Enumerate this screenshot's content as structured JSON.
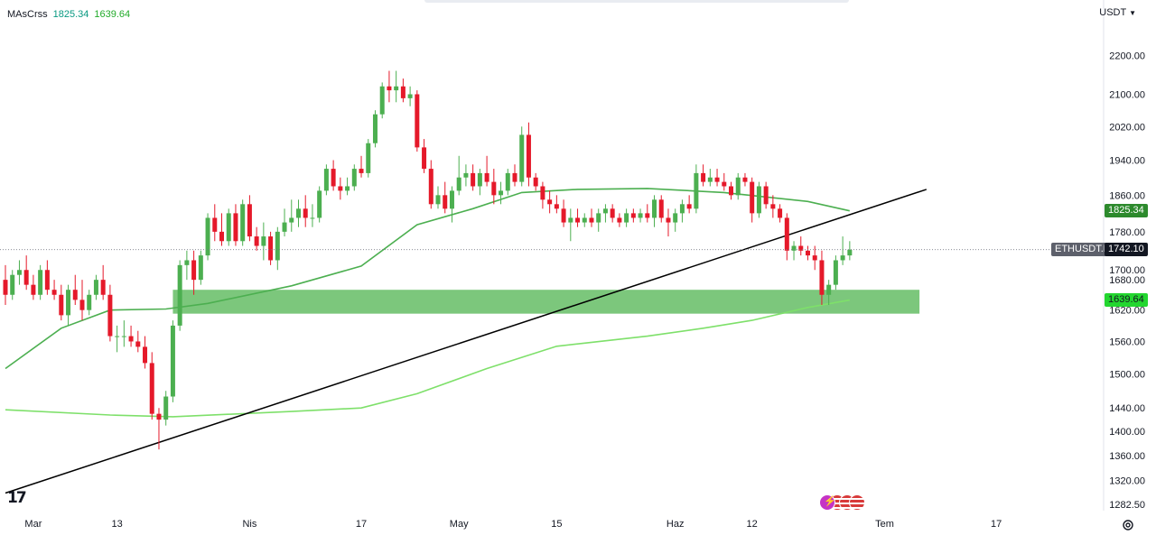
{
  "legend": {
    "name": "MAsCrss",
    "value1": "1825.34",
    "value2": "1639.64"
  },
  "currency": "USDT",
  "currency_icon": "chevron-down-icon",
  "symbol": "ETHUSDT.P",
  "last_price": "1742.10",
  "ma_fast_price": "1825.34",
  "ma_slow_price": "1639.64",
  "price_ticks": [
    "2200.00",
    "2100.00",
    "2020.00",
    "1940.00",
    "1860.00",
    "1780.00",
    "1700.00",
    "1680.00",
    "1620.00",
    "1560.00",
    "1500.00",
    "1440.00",
    "1400.00",
    "1360.00",
    "1320.00",
    "1282.50"
  ],
  "time_ticks": [
    "Mar",
    "13",
    "Nis",
    "17",
    "May",
    "15",
    "Haz",
    "12",
    "Tem",
    "17"
  ],
  "colors": {
    "up": "#4caf50",
    "down": "#e5192a",
    "ma_fast": "#4caf50",
    "ma_slow": "#7ee06a",
    "zone": "#7cc77c",
    "trend": "#000000",
    "tag_dark": "#2d8a2d",
    "tag_bright": "#23d62f",
    "tag_symbol": "#5d606b",
    "tag_last": "#131722"
  },
  "logo": "17",
  "chart_data": {
    "type": "candlestick",
    "symbol": "ETHUSDT.P",
    "y_scale": "log",
    "ylim": [
      1282.5,
      2240
    ],
    "x_range": [
      "2025-02-25",
      "2025-07-21"
    ],
    "candles": [
      [
        "2025-02-25",
        1680,
        1710,
        1630,
        1650
      ],
      [
        "2025-02-26",
        1650,
        1700,
        1640,
        1690
      ],
      [
        "2025-02-27",
        1690,
        1720,
        1670,
        1700
      ],
      [
        "2025-02-28",
        1700,
        1730,
        1660,
        1670
      ],
      [
        "2025-03-01",
        1670,
        1690,
        1640,
        1650
      ],
      [
        "2025-03-02",
        1650,
        1710,
        1640,
        1700
      ],
      [
        "2025-03-03",
        1700,
        1720,
        1650,
        1660
      ],
      [
        "2025-03-04",
        1660,
        1680,
        1640,
        1650
      ],
      [
        "2025-03-05",
        1650,
        1670,
        1600,
        1610
      ],
      [
        "2025-03-06",
        1610,
        1670,
        1590,
        1660
      ],
      [
        "2025-03-07",
        1660,
        1690,
        1630,
        1640
      ],
      [
        "2025-03-08",
        1640,
        1680,
        1600,
        1620
      ],
      [
        "2025-03-09",
        1620,
        1660,
        1610,
        1650
      ],
      [
        "2025-03-10",
        1650,
        1690,
        1640,
        1680
      ],
      [
        "2025-03-11",
        1680,
        1710,
        1640,
        1650
      ],
      [
        "2025-03-12",
        1650,
        1670,
        1560,
        1570
      ],
      [
        "2025-03-13",
        1570,
        1590,
        1540,
        1570
      ],
      [
        "2025-03-14",
        1570,
        1600,
        1550,
        1570
      ],
      [
        "2025-03-15",
        1570,
        1590,
        1550,
        1560
      ],
      [
        "2025-03-16",
        1560,
        1580,
        1540,
        1550
      ],
      [
        "2025-03-17",
        1550,
        1570,
        1510,
        1520
      ],
      [
        "2025-03-18",
        1520,
        1540,
        1420,
        1430
      ],
      [
        "2025-03-19",
        1430,
        1440,
        1370,
        1420
      ],
      [
        "2025-03-20",
        1420,
        1470,
        1410,
        1460
      ],
      [
        "2025-03-21",
        1460,
        1600,
        1450,
        1590
      ],
      [
        "2025-03-22",
        1590,
        1720,
        1580,
        1710
      ],
      [
        "2025-03-23",
        1710,
        1740,
        1680,
        1720
      ],
      [
        "2025-03-24",
        1720,
        1740,
        1650,
        1680
      ],
      [
        "2025-03-25",
        1680,
        1740,
        1670,
        1730
      ],
      [
        "2025-03-26",
        1730,
        1820,
        1720,
        1810
      ],
      [
        "2025-03-27",
        1810,
        1840,
        1760,
        1780
      ],
      [
        "2025-03-28",
        1780,
        1820,
        1750,
        1760
      ],
      [
        "2025-03-29",
        1760,
        1830,
        1750,
        1820
      ],
      [
        "2025-03-30",
        1820,
        1840,
        1750,
        1760
      ],
      [
        "2025-03-31",
        1760,
        1850,
        1750,
        1840
      ],
      [
        "2025-04-01",
        1840,
        1860,
        1760,
        1770
      ],
      [
        "2025-04-02",
        1770,
        1790,
        1740,
        1750
      ],
      [
        "2025-04-03",
        1750,
        1800,
        1720,
        1770
      ],
      [
        "2025-04-04",
        1770,
        1780,
        1710,
        1720
      ],
      [
        "2025-04-05",
        1720,
        1790,
        1700,
        1780
      ],
      [
        "2025-04-06",
        1780,
        1830,
        1770,
        1800
      ],
      [
        "2025-04-07",
        1800,
        1850,
        1780,
        1810
      ],
      [
        "2025-04-08",
        1810,
        1850,
        1790,
        1830
      ],
      [
        "2025-04-09",
        1830,
        1860,
        1790,
        1810
      ],
      [
        "2025-04-10",
        1810,
        1840,
        1790,
        1810
      ],
      [
        "2025-04-11",
        1810,
        1880,
        1800,
        1870
      ],
      [
        "2025-04-12",
        1870,
        1930,
        1860,
        1920
      ],
      [
        "2025-04-13",
        1920,
        1940,
        1870,
        1880
      ],
      [
        "2025-04-14",
        1880,
        1900,
        1850,
        1870
      ],
      [
        "2025-04-15",
        1870,
        1900,
        1860,
        1880
      ],
      [
        "2025-04-16",
        1880,
        1930,
        1870,
        1920
      ],
      [
        "2025-04-17",
        1920,
        1950,
        1900,
        1910
      ],
      [
        "2025-04-18",
        1910,
        1990,
        1900,
        1980
      ],
      [
        "2025-04-19",
        1980,
        2060,
        1970,
        2050
      ],
      [
        "2025-04-20",
        2050,
        2130,
        2040,
        2120
      ],
      [
        "2025-04-21",
        2120,
        2160,
        2080,
        2110
      ],
      [
        "2025-04-22",
        2110,
        2160,
        2080,
        2120
      ],
      [
        "2025-04-23",
        2120,
        2140,
        2080,
        2090
      ],
      [
        "2025-04-24",
        2090,
        2120,
        2070,
        2100
      ],
      [
        "2025-04-25",
        2100,
        2110,
        1960,
        1970
      ],
      [
        "2025-04-26",
        1970,
        1990,
        1910,
        1920
      ],
      [
        "2025-04-27",
        1920,
        1940,
        1830,
        1840
      ],
      [
        "2025-04-28",
        1840,
        1880,
        1830,
        1860
      ],
      [
        "2025-04-29",
        1860,
        1890,
        1820,
        1830
      ],
      [
        "2025-04-30",
        1830,
        1880,
        1800,
        1870
      ],
      [
        "2025-05-01",
        1870,
        1950,
        1860,
        1900
      ],
      [
        "2025-05-02",
        1900,
        1930,
        1880,
        1910
      ],
      [
        "2025-05-03",
        1910,
        1930,
        1870,
        1880
      ],
      [
        "2025-05-04",
        1880,
        1920,
        1860,
        1910
      ],
      [
        "2025-05-05",
        1910,
        1950,
        1880,
        1890
      ],
      [
        "2025-05-06",
        1890,
        1920,
        1840,
        1860
      ],
      [
        "2025-05-07",
        1860,
        1890,
        1840,
        1870
      ],
      [
        "2025-05-08",
        1870,
        1920,
        1860,
        1910
      ],
      [
        "2025-05-09",
        1910,
        1930,
        1880,
        1890
      ],
      [
        "2025-05-10",
        1890,
        2020,
        1880,
        2000
      ],
      [
        "2025-05-11",
        2000,
        2030,
        1880,
        1900
      ],
      [
        "2025-05-12",
        1900,
        1910,
        1870,
        1880
      ],
      [
        "2025-05-13",
        1880,
        1890,
        1830,
        1850
      ],
      [
        "2025-05-14",
        1850,
        1870,
        1820,
        1840
      ],
      [
        "2025-05-15",
        1840,
        1860,
        1820,
        1830
      ],
      [
        "2025-05-16",
        1830,
        1850,
        1790,
        1800
      ],
      [
        "2025-05-17",
        1800,
        1830,
        1760,
        1810
      ],
      [
        "2025-05-18",
        1810,
        1830,
        1790,
        1800
      ],
      [
        "2025-05-19",
        1800,
        1820,
        1790,
        1810
      ],
      [
        "2025-05-20",
        1810,
        1830,
        1790,
        1800
      ],
      [
        "2025-05-21",
        1800,
        1830,
        1780,
        1820
      ],
      [
        "2025-05-22",
        1820,
        1840,
        1800,
        1830
      ],
      [
        "2025-05-23",
        1830,
        1840,
        1800,
        1810
      ],
      [
        "2025-05-24",
        1810,
        1820,
        1790,
        1800
      ],
      [
        "2025-05-25",
        1800,
        1830,
        1790,
        1820
      ],
      [
        "2025-05-26",
        1820,
        1830,
        1800,
        1810
      ],
      [
        "2025-05-27",
        1810,
        1830,
        1800,
        1820
      ],
      [
        "2025-05-28",
        1820,
        1840,
        1800,
        1810
      ],
      [
        "2025-05-29",
        1810,
        1860,
        1790,
        1850
      ],
      [
        "2025-05-30",
        1850,
        1860,
        1800,
        1810
      ],
      [
        "2025-05-31",
        1810,
        1830,
        1770,
        1800
      ],
      [
        "2025-06-01",
        1800,
        1830,
        1780,
        1820
      ],
      [
        "2025-06-02",
        1820,
        1850,
        1800,
        1840
      ],
      [
        "2025-06-03",
        1840,
        1860,
        1820,
        1830
      ],
      [
        "2025-06-04",
        1830,
        1930,
        1820,
        1910
      ],
      [
        "2025-06-05",
        1910,
        1930,
        1880,
        1890
      ],
      [
        "2025-06-06",
        1890,
        1920,
        1880,
        1900
      ],
      [
        "2025-06-07",
        1900,
        1920,
        1880,
        1890
      ],
      [
        "2025-06-08",
        1890,
        1910,
        1870,
        1880
      ],
      [
        "2025-06-09",
        1880,
        1890,
        1850,
        1860
      ],
      [
        "2025-06-10",
        1860,
        1910,
        1850,
        1900
      ],
      [
        "2025-06-11",
        1900,
        1910,
        1880,
        1890
      ],
      [
        "2025-06-12",
        1890,
        1900,
        1800,
        1820
      ],
      [
        "2025-06-13",
        1820,
        1890,
        1810,
        1880
      ],
      [
        "2025-06-14",
        1880,
        1890,
        1830,
        1840
      ],
      [
        "2025-06-15",
        1840,
        1860,
        1810,
        1830
      ],
      [
        "2025-06-16",
        1830,
        1840,
        1800,
        1810
      ],
      [
        "2025-06-17",
        1810,
        1820,
        1720,
        1740
      ],
      [
        "2025-06-18",
        1740,
        1760,
        1720,
        1750
      ],
      [
        "2025-06-19",
        1750,
        1770,
        1730,
        1740
      ],
      [
        "2025-06-20",
        1740,
        1750,
        1720,
        1730
      ],
      [
        "2025-06-21",
        1730,
        1750,
        1700,
        1720
      ],
      [
        "2025-06-22",
        1720,
        1740,
        1630,
        1650
      ],
      [
        "2025-06-23",
        1650,
        1680,
        1630,
        1670
      ],
      [
        "2025-06-24",
        1670,
        1730,
        1660,
        1720
      ],
      [
        "2025-06-25",
        1720,
        1770,
        1710,
        1730
      ],
      [
        "2025-06-26",
        1730,
        1760,
        1720,
        1742.1
      ]
    ],
    "moving_averages": [
      {
        "value": 1825.34,
        "points": [
          [
            "2025-02-25",
            1510
          ],
          [
            "2025-03-05",
            1585
          ],
          [
            "2025-03-12",
            1620
          ],
          [
            "2025-03-20",
            1622
          ],
          [
            "2025-03-26",
            1633
          ],
          [
            "2025-04-07",
            1668
          ],
          [
            "2025-04-17",
            1708
          ],
          [
            "2025-04-25",
            1795
          ],
          [
            "2025-05-03",
            1830
          ],
          [
            "2025-05-10",
            1866
          ],
          [
            "2025-05-18",
            1873
          ],
          [
            "2025-05-28",
            1875
          ],
          [
            "2025-06-08",
            1866
          ],
          [
            "2025-06-20",
            1846
          ],
          [
            "2025-06-26",
            1825.34
          ]
        ]
      },
      {
        "value": 1639.64,
        "points": [
          [
            "2025-02-25",
            1437
          ],
          [
            "2025-03-12",
            1428
          ],
          [
            "2025-03-21",
            1425
          ],
          [
            "2025-04-07",
            1434
          ],
          [
            "2025-04-17",
            1440
          ],
          [
            "2025-04-25",
            1465
          ],
          [
            "2025-05-05",
            1510
          ],
          [
            "2025-05-15",
            1551
          ],
          [
            "2025-05-28",
            1570
          ],
          [
            "2025-06-05",
            1585
          ],
          [
            "2025-06-12",
            1600
          ],
          [
            "2025-06-20",
            1625
          ],
          [
            "2025-06-26",
            1639.64
          ]
        ]
      }
    ],
    "support_zone": {
      "from": "2025-03-21",
      "to": "2025-07-06",
      "low": 1613,
      "high": 1660
    },
    "trendline": [
      [
        "2025-02-25",
        1300
      ],
      [
        "2025-07-07",
        1873
      ]
    ]
  }
}
